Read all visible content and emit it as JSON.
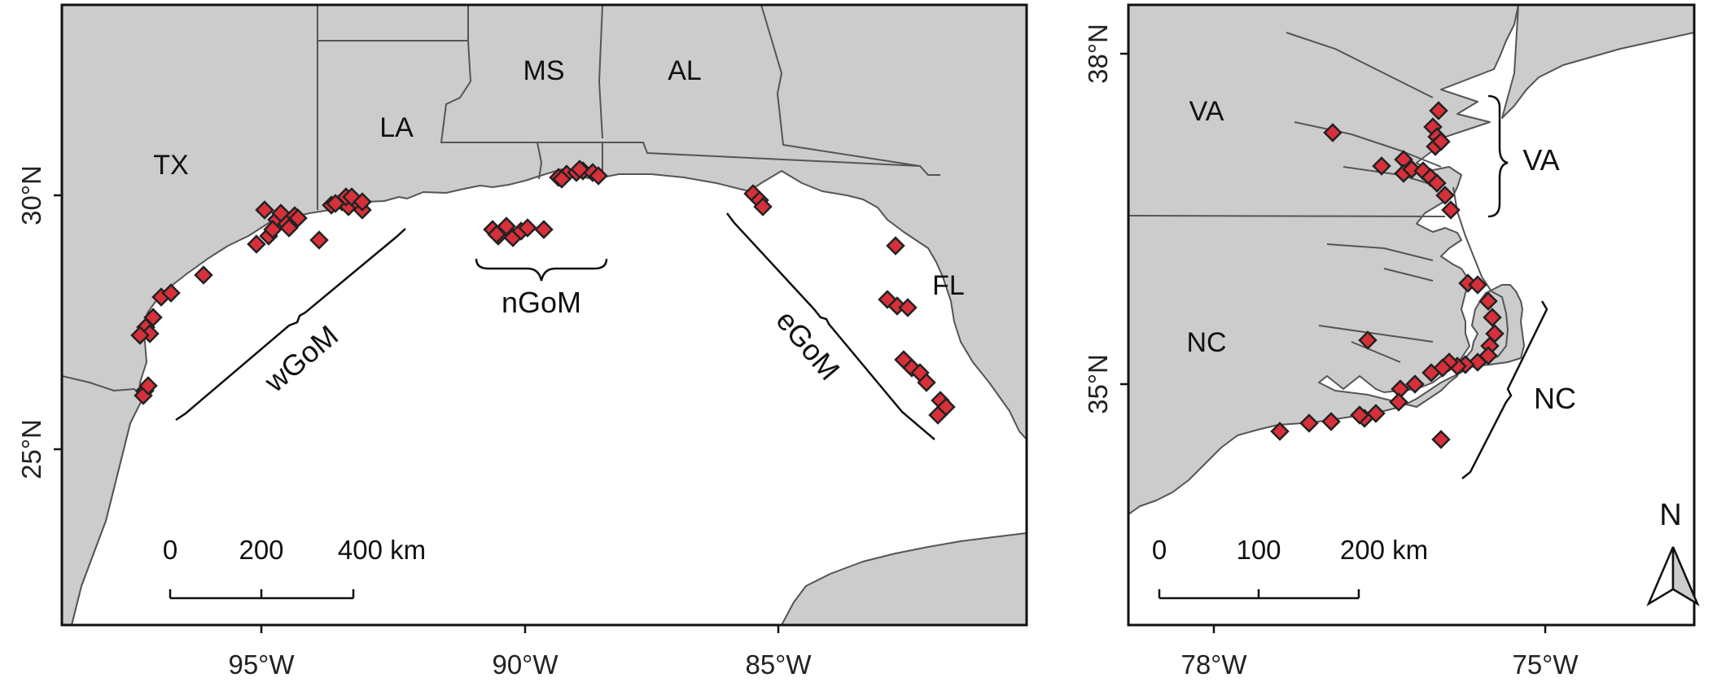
{
  "left_map": {
    "state_labels": [
      "TX",
      "LA",
      "MS",
      "AL",
      "FL"
    ],
    "region_labels": [
      "wGoM",
      "nGoM",
      "eGoM"
    ],
    "lat_ticks": [
      "30°N",
      "25°N"
    ],
    "lon_ticks": [
      "95°W",
      "90°W",
      "85°W"
    ],
    "scale_bar": {
      "ticks": [
        "0",
        "200",
        "400 km"
      ]
    }
  },
  "right_map": {
    "state_labels": [
      "VA",
      "NC"
    ],
    "region_labels": [
      "VA",
      "NC"
    ],
    "lat_ticks": [
      "38°N",
      "35°N"
    ],
    "lon_ticks": [
      "78°W",
      "75°W"
    ],
    "scale_bar": {
      "ticks": [
        "0",
        "100",
        "200 km"
      ]
    },
    "north_arrow": "N"
  },
  "colors": {
    "land": "#cccccc",
    "water": "#ffffff",
    "site_marker": "#d7303a",
    "coastline": "#555555"
  },
  "legend": {
    "marker_icon": "red-diamond"
  }
}
